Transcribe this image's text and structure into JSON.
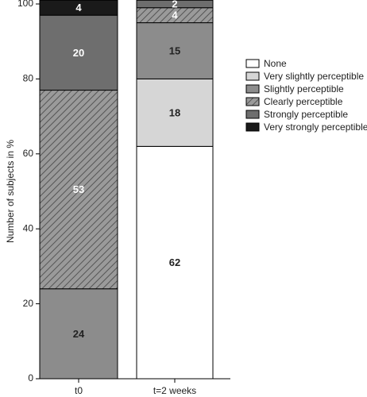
{
  "chart_data": {
    "type": "stacked_bar",
    "categories": [
      "t0",
      "t=2 weeks"
    ],
    "ylabel": "Number of subjects in %",
    "ylim": [
      0,
      100
    ],
    "yticks": [
      0,
      20,
      40,
      60,
      80,
      100
    ],
    "series": [
      {
        "name": "None",
        "color": "#ffffff",
        "values": [
          null,
          62
        ]
      },
      {
        "name": "Very slightly perceptible",
        "color": "#d6d6d6",
        "values": [
          null,
          18
        ]
      },
      {
        "name": "Slightly perceptible",
        "color": "#8c8c8c",
        "values": [
          24,
          15
        ]
      },
      {
        "name": "Clearly perceptible",
        "color": "#9a9a9a",
        "hatch": true,
        "values": [
          53,
          4
        ]
      },
      {
        "name": "Strongly perceptible",
        "color": "#6e6e6e",
        "values": [
          20,
          2
        ]
      },
      {
        "name": "Very strongly perceptible",
        "color": "#1a1a1a",
        "values": [
          4,
          null
        ]
      }
    ]
  }
}
